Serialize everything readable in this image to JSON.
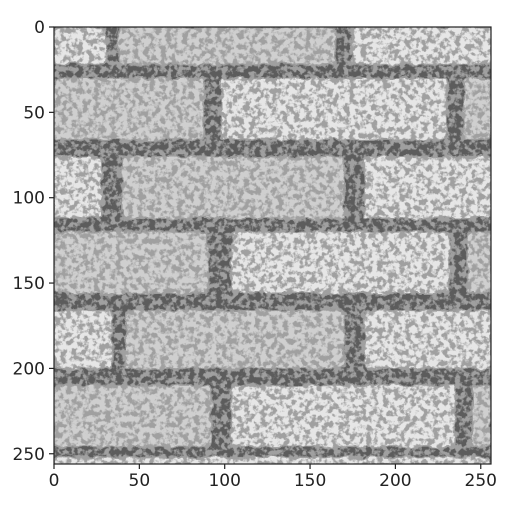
{
  "figure": {
    "type": "image",
    "description_visible": false,
    "colormap": "gray",
    "axes_color": "#222222",
    "image_extent": {
      "x": [
        0,
        256
      ],
      "y": [
        0,
        256
      ]
    },
    "x_ticks": [
      0,
      50,
      100,
      150,
      200,
      250
    ],
    "y_ticks": [
      0,
      50,
      100,
      150,
      200,
      250
    ],
    "x_tick_labels": [
      "0",
      "50",
      "100",
      "150",
      "200",
      "250"
    ],
    "y_tick_labels": [
      "0",
      "50",
      "100",
      "150",
      "200",
      "250"
    ],
    "colors": {
      "mortar": "#5c5c5c",
      "brick_light": "#e6e6e6",
      "brick_mid": "#cfcfcf",
      "brick_dark": "#9a9a9a"
    }
  }
}
